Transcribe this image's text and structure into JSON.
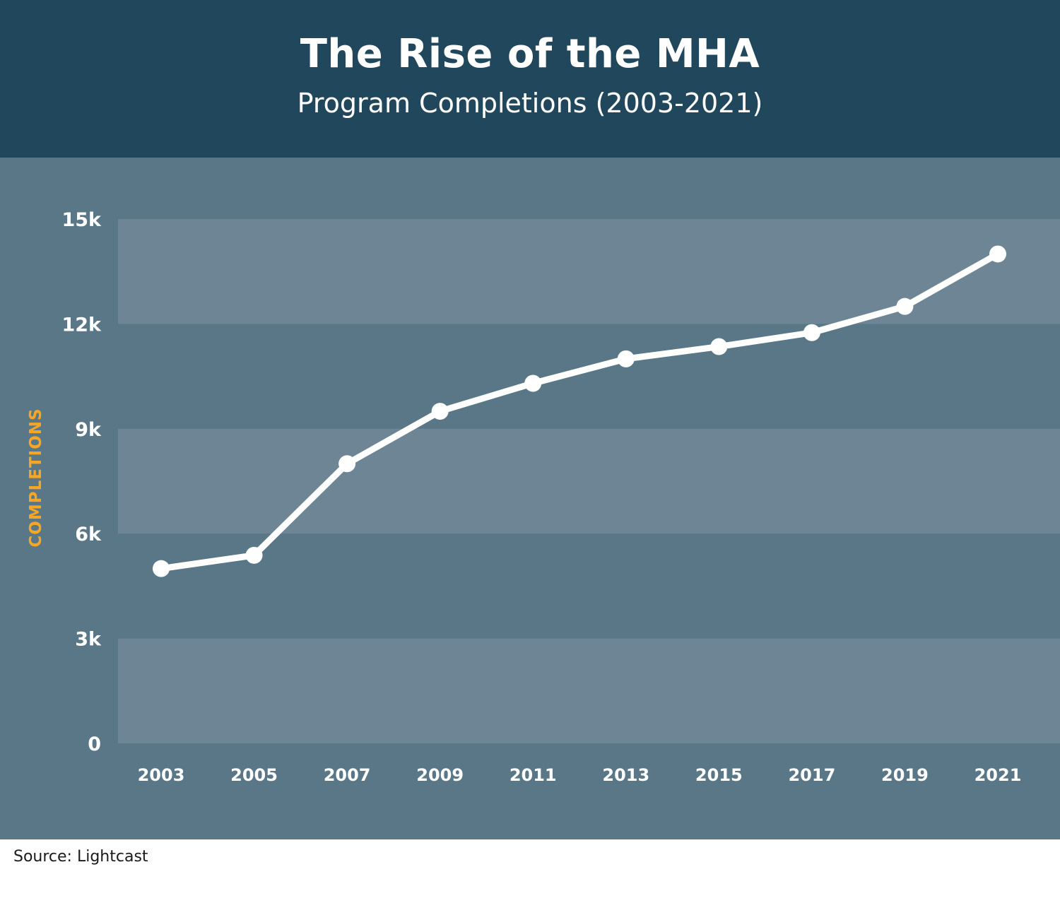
{
  "header": {
    "title": "The Rise of the MHA",
    "subtitle": "Program Completions (2003-2021)"
  },
  "footer": {
    "source": "Source: Lightcast"
  },
  "colors": {
    "header_bg": "#21475d",
    "panel_bg": "#5a7787",
    "band_light": "#6d8594",
    "line": "#ffffff",
    "ylabel": "#f6a623"
  },
  "chart_data": {
    "type": "line",
    "title": "The Rise of the MHA",
    "subtitle": "Program Completions (2003-2021)",
    "xlabel": "",
    "ylabel": "COMPLETIONS",
    "x": [
      "2003",
      "2005",
      "2007",
      "2009",
      "2011",
      "2013",
      "2015",
      "2017",
      "2019",
      "2021"
    ],
    "series": [
      {
        "values": [
          5000,
          5380,
          8000,
          9500,
          10300,
          11000,
          11350,
          11750,
          12500,
          14000
        ]
      }
    ],
    "ylim": [
      0,
      15000
    ],
    "yticks": [
      0,
      3000,
      6000,
      9000,
      12000,
      15000
    ],
    "ytick_labels": [
      "0",
      "3k",
      "6k",
      "9k",
      "12k",
      "15k"
    ],
    "grid": "alternating horizontal bands",
    "legend": "none"
  }
}
